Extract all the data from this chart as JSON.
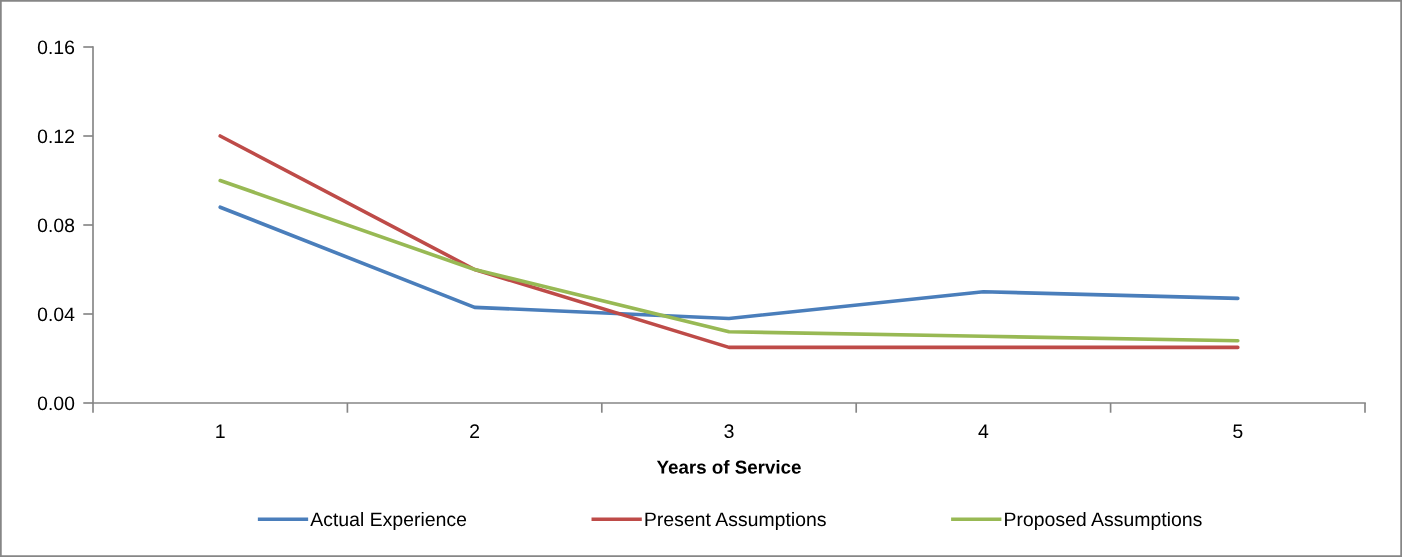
{
  "chart_data": {
    "type": "line",
    "xlabel": "Years of Service",
    "categories": [
      "1",
      "2",
      "3",
      "4",
      "5"
    ],
    "series": [
      {
        "name": "Actual Experience",
        "color": "#4a7ebb",
        "values": [
          0.088,
          0.043,
          0.038,
          0.05,
          0.047
        ]
      },
      {
        "name": "Present Assumptions",
        "color": "#be4b48",
        "values": [
          0.12,
          0.06,
          0.025,
          0.025,
          0.025
        ]
      },
      {
        "name": "Proposed Assumptions",
        "color": "#98b954",
        "values": [
          0.1,
          0.06,
          0.032,
          0.03,
          0.028
        ]
      }
    ],
    "ylim": [
      0,
      0.16
    ],
    "yticks": [
      {
        "value": 0,
        "label": "0.00"
      },
      0.04,
      0.08,
      0.12,
      0.16
    ],
    "grid": false,
    "legend": "bottom",
    "marker": "none",
    "line_style": "solid"
  }
}
